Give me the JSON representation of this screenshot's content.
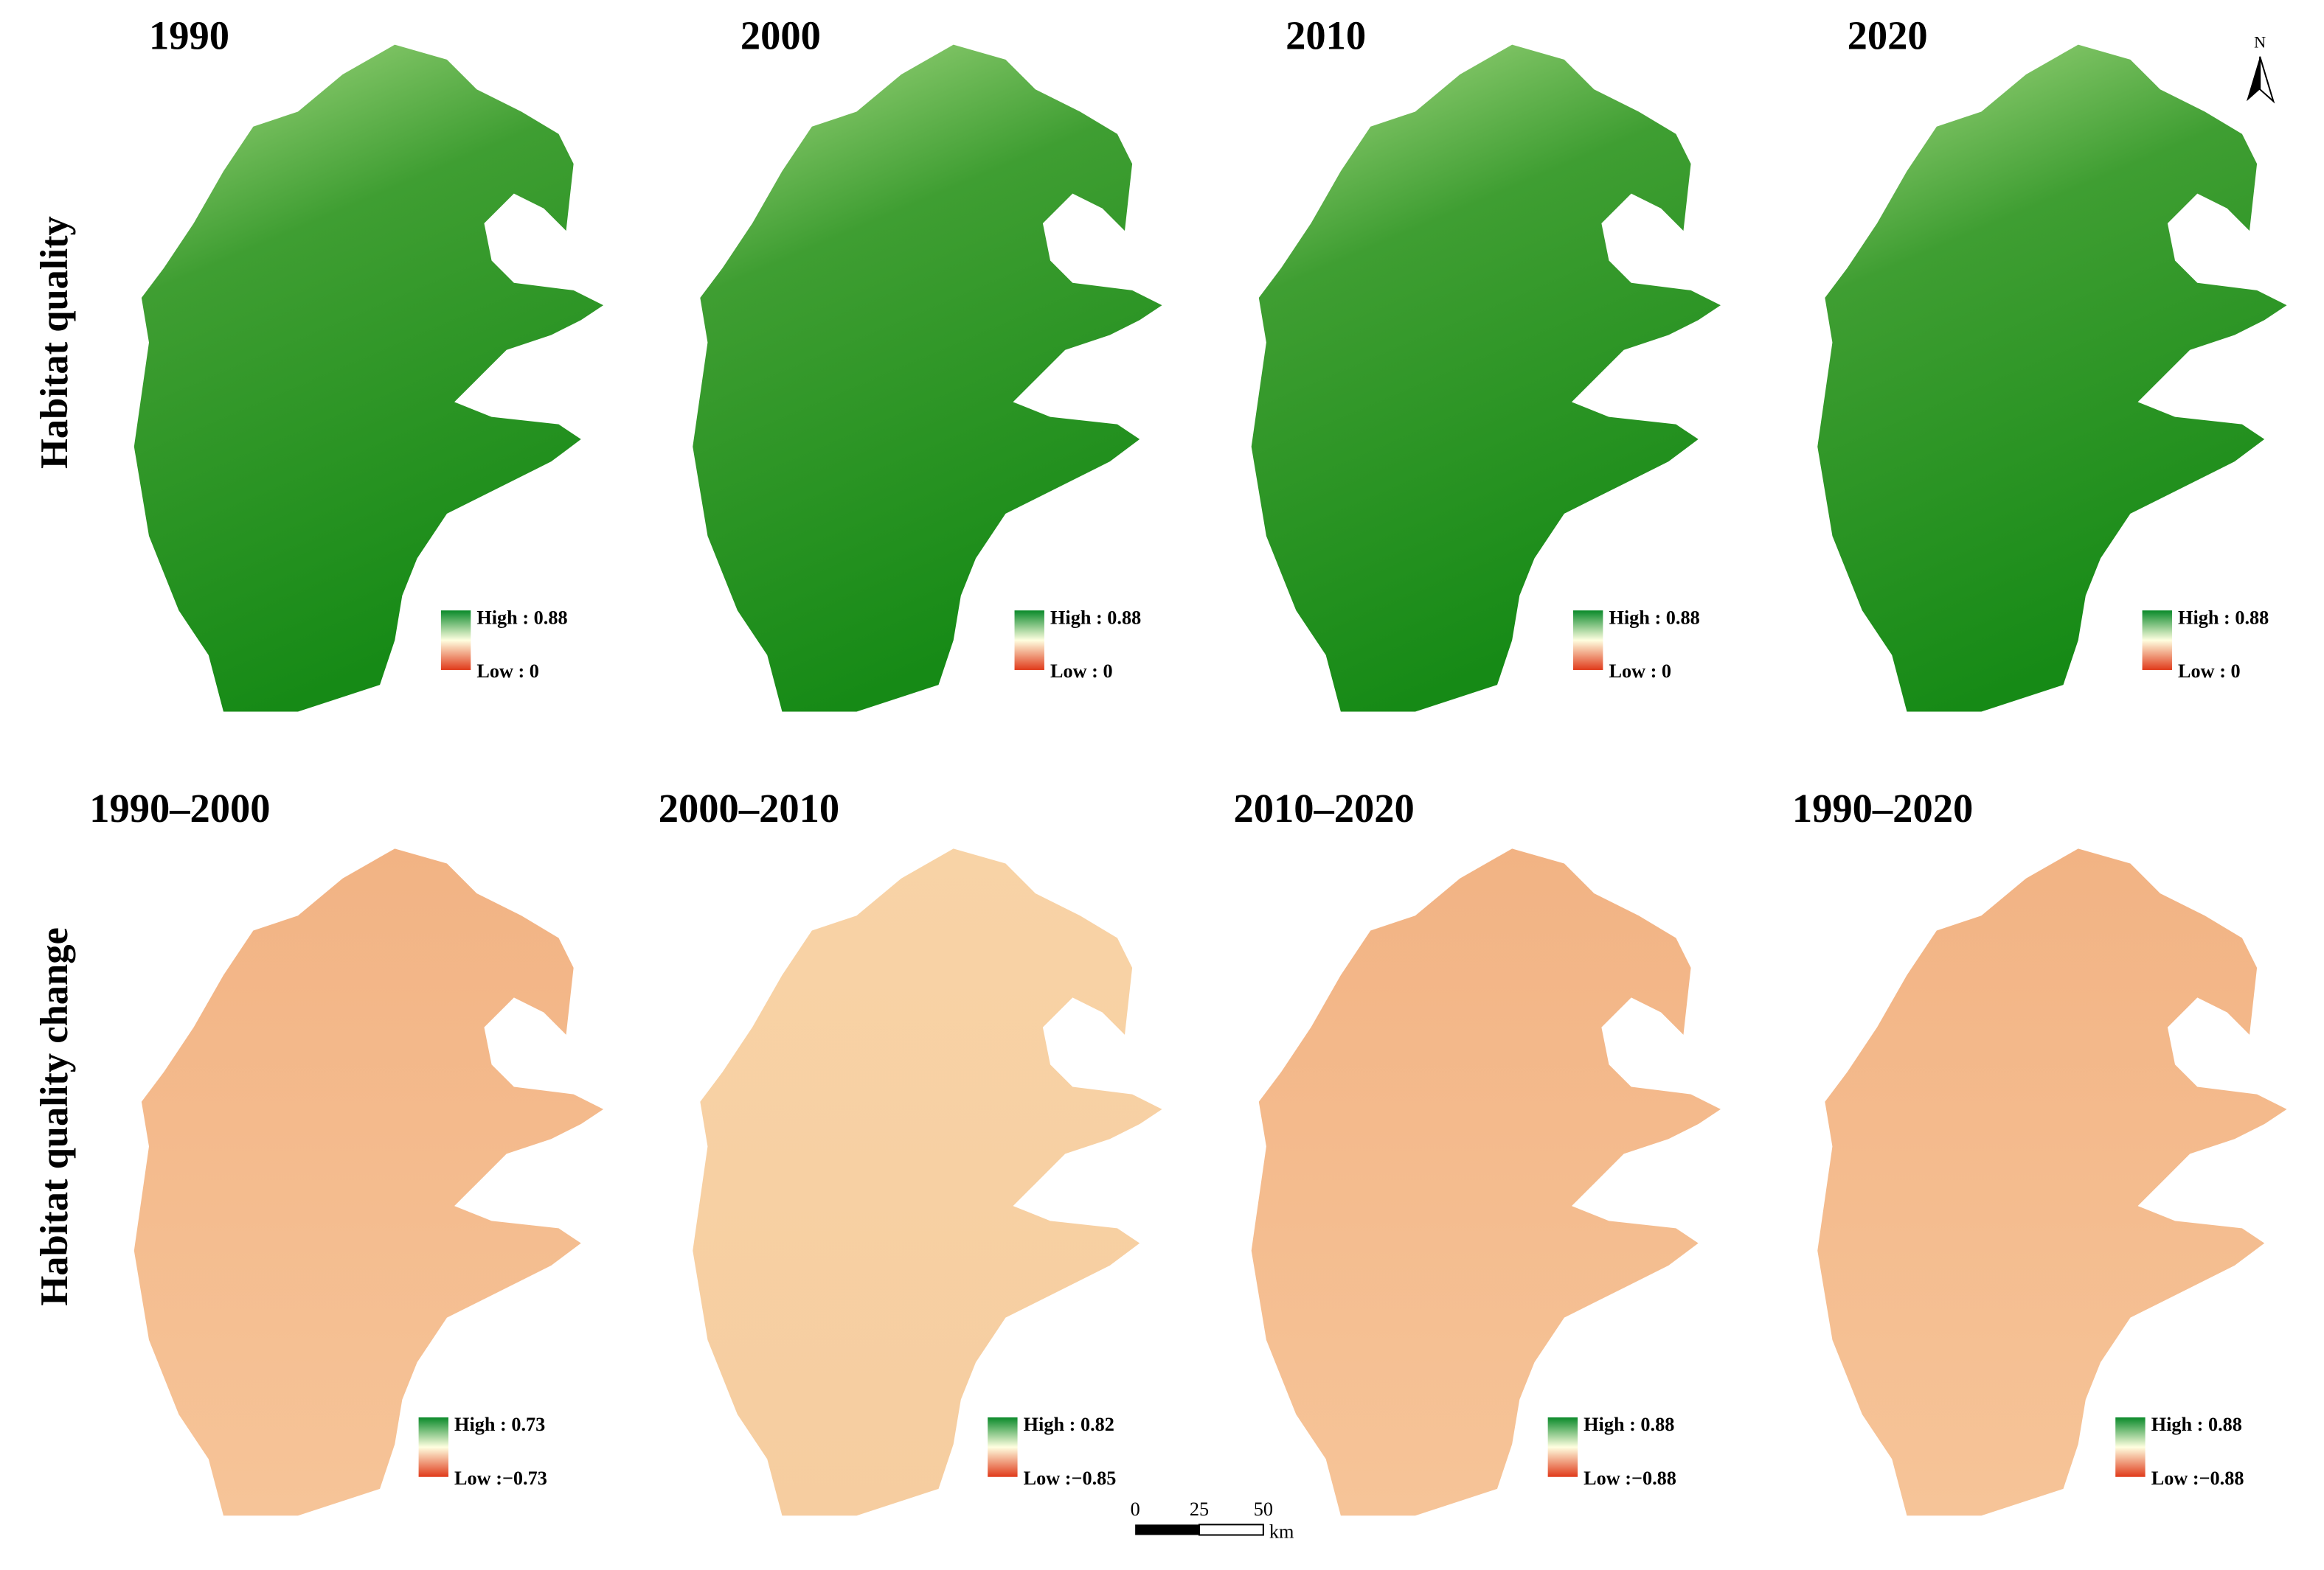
{
  "rows": [
    {
      "label": "Habitat quality",
      "panels": [
        {
          "title": "1990",
          "legend_high": "High : 0.88",
          "legend_low": "Low : 0"
        },
        {
          "title": "2000",
          "legend_high": "High : 0.88",
          "legend_low": "Low : 0"
        },
        {
          "title": "2010",
          "legend_high": "High : 0.88",
          "legend_low": "Low : 0"
        },
        {
          "title": "2020",
          "legend_high": "High : 0.88",
          "legend_low": "Low : 0"
        }
      ]
    },
    {
      "label": "Habitat quality change",
      "panels": [
        {
          "title": "1990–2000",
          "legend_high": "High : 0.73",
          "legend_low": "Low :−0.73"
        },
        {
          "title": "2000–2010",
          "legend_high": "High : 0.82",
          "legend_low": "Low :−0.85"
        },
        {
          "title": "2010–2020",
          "legend_high": "High : 0.88",
          "legend_low": "Low :−0.88"
        },
        {
          "title": "1990–2020",
          "legend_high": "High : 0.88",
          "legend_low": "Low :−0.88"
        }
      ]
    }
  ],
  "scale_bar": {
    "ticks": [
      "0",
      "25",
      "50"
    ],
    "unit": "km"
  },
  "north": "N"
}
